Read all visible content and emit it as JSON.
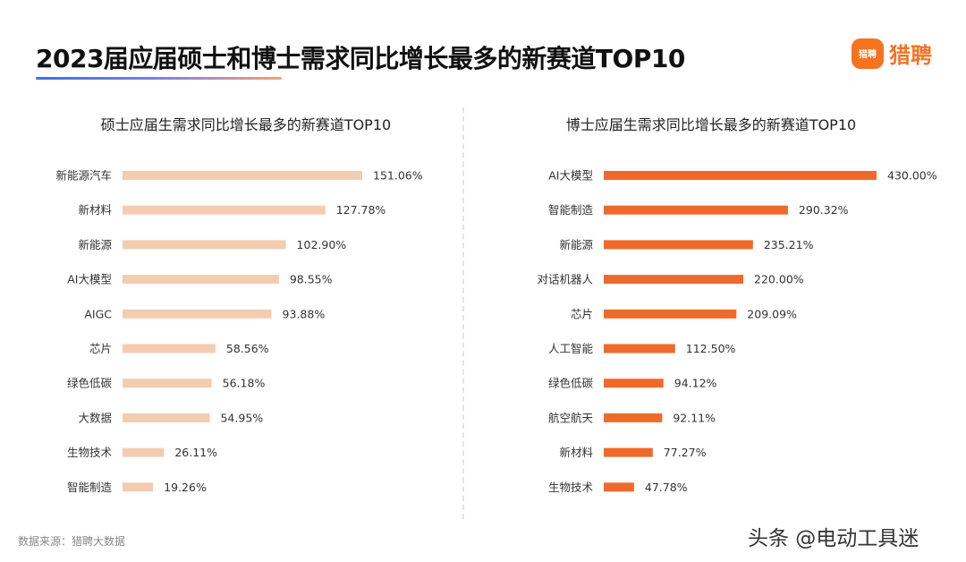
{
  "title": "2023届应届硕士和博士需求同比增长最多的新赛道TOP10",
  "brand": {
    "icon_text": "猎聘",
    "name": "猎聘"
  },
  "source": "数据来源：猎聘大数据",
  "watermark": "头条 @电动工具迷",
  "colors": {
    "master_bar": "#f4ccb0",
    "phd_bar": "#ef6a2a",
    "brand": "#f5731f"
  },
  "chart_data": [
    {
      "type": "bar",
      "orientation": "horizontal",
      "title": "硕士应届生需求同比增长最多的新赛道TOP10",
      "categories": [
        "新能源汽车",
        "新材料",
        "新能源",
        "AI大模型",
        "AIGC",
        "芯片",
        "绿色低碳",
        "大数据",
        "生物技术",
        "智能制造"
      ],
      "values": [
        151.06,
        127.78,
        102.9,
        98.55,
        93.88,
        58.56,
        56.18,
        54.95,
        26.11,
        19.26
      ],
      "value_labels": [
        "151.06%",
        "127.78%",
        "102.90%",
        "98.55%",
        "93.88%",
        "58.56%",
        "56.18%",
        "54.95%",
        "26.11%",
        "19.26%"
      ],
      "unit": "%",
      "grid": false,
      "color": "#f4ccb0"
    },
    {
      "type": "bar",
      "orientation": "horizontal",
      "title": "博士应届生需求同比增长最多的新赛道TOP10",
      "categories": [
        "AI大模型",
        "智能制造",
        "新能源",
        "对话机器人",
        "芯片",
        "人工智能",
        "绿色低碳",
        "航空航天",
        "新材料",
        "生物技术"
      ],
      "values": [
        430.0,
        290.32,
        235.21,
        220.0,
        209.09,
        112.5,
        94.12,
        92.11,
        77.27,
        47.78
      ],
      "value_labels": [
        "430.00%",
        "290.32%",
        "235.21%",
        "220.00%",
        "209.09%",
        "112.50%",
        "94.12%",
        "92.11%",
        "77.27%",
        "47.78%"
      ],
      "unit": "%",
      "grid": false,
      "color": "#ef6a2a"
    }
  ]
}
